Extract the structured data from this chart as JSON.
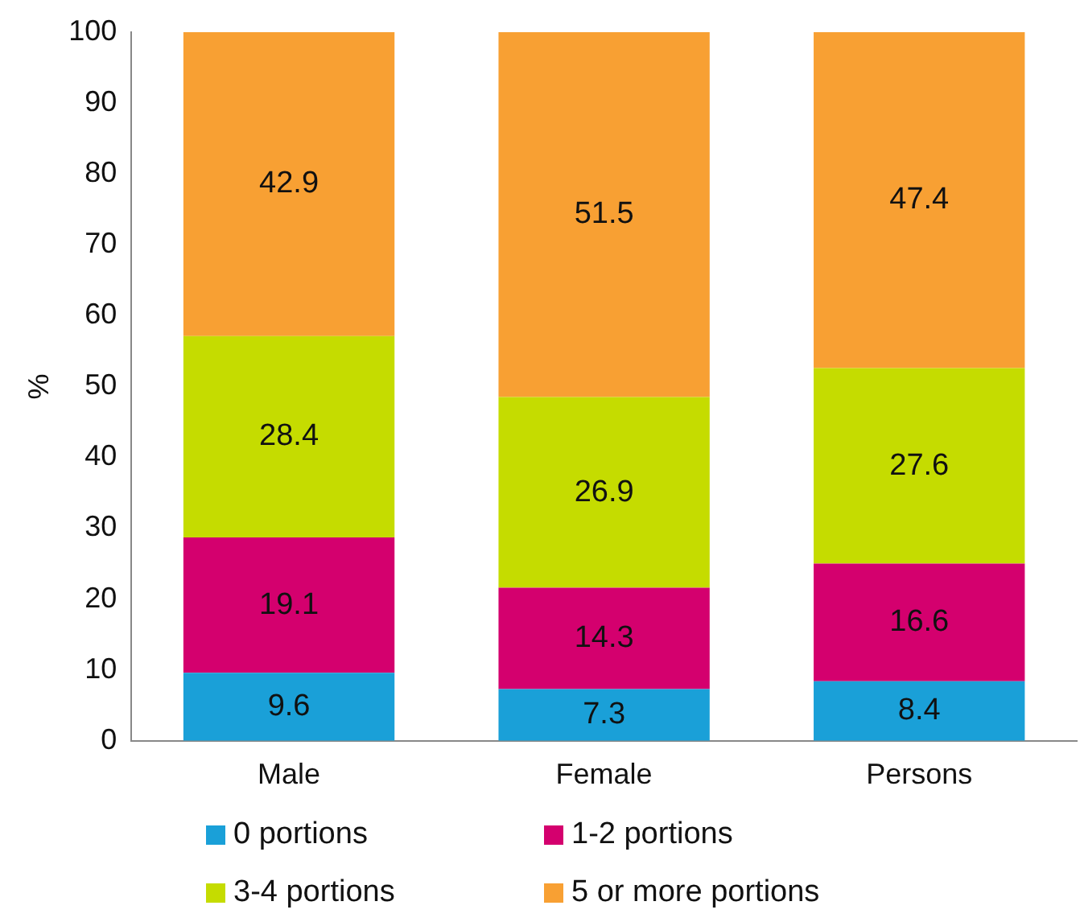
{
  "chart_data": {
    "type": "bar",
    "stacked": true,
    "ylabel": "%",
    "categories": [
      "Male",
      "Female",
      "Persons"
    ],
    "series": [
      {
        "name": "0 portions",
        "color": "#1aa0d8",
        "values": [
          9.6,
          7.3,
          8.4
        ]
      },
      {
        "name": "1-2 portions",
        "color": "#d4006e",
        "values": [
          19.1,
          14.3,
          16.6
        ]
      },
      {
        "name": "3-4 portions",
        "color": "#c5dc00",
        "values": [
          28.4,
          26.9,
          27.6
        ]
      },
      {
        "name": "5 or more portions",
        "color": "#f8a033",
        "values": [
          42.9,
          51.5,
          47.4
        ]
      }
    ],
    "ylim": [
      0,
      100
    ],
    "yticks": [
      0,
      10,
      20,
      30,
      40,
      50,
      60,
      70,
      80,
      90,
      100
    ],
    "grid": false,
    "legend": "bottom",
    "data_labels": true
  }
}
